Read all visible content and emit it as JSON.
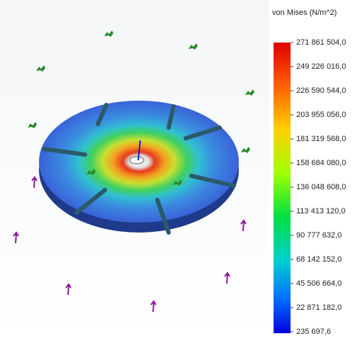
{
  "legend": {
    "title": "von Mises (N/m^2)",
    "labels": [
      "271 861 504,0",
      "249 226 016,0",
      "226 590 544,0",
      "203 955 056,0",
      "181 319 568,0",
      "158 684 080,0",
      "136 048 608,0",
      "113 413 120,0",
      "90 777 632,0",
      "68 142 152,0",
      "45 506 664,0",
      "22 871 182,0",
      "235 697,6"
    ]
  }
}
